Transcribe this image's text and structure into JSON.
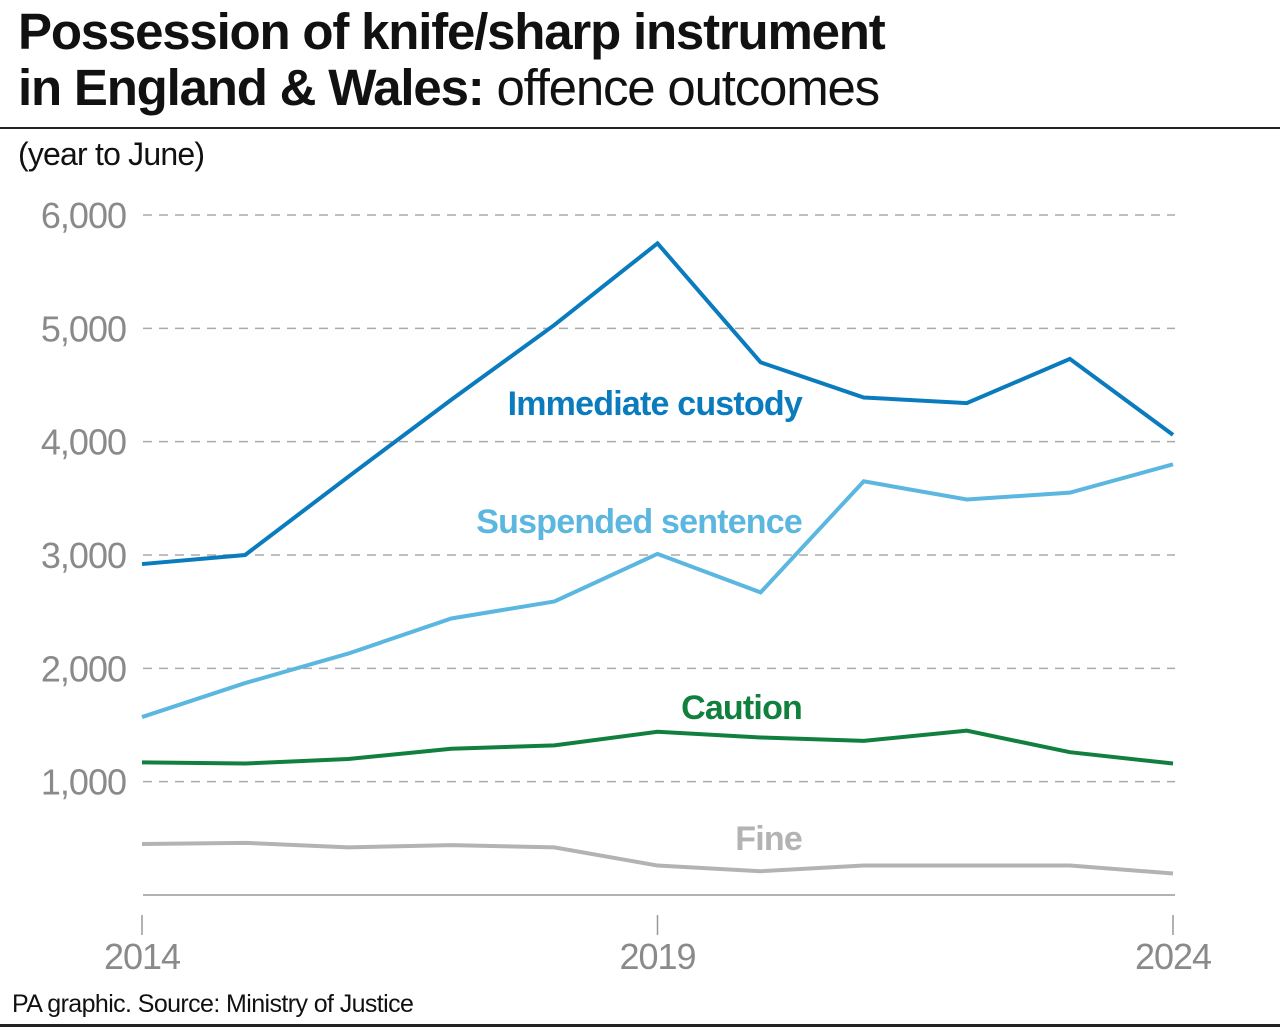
{
  "title": {
    "bold_line1": "Possession of knife/sharp instrument",
    "bold_line2": "in England & Wales:",
    "light": " offence outcomes"
  },
  "subtitle": "(year to June)",
  "footer": "PA graphic. Source: Ministry of Justice",
  "chart_data": {
    "type": "line",
    "x": [
      2014,
      2015,
      2016,
      2017,
      2018,
      2019,
      2020,
      2021,
      2022,
      2023,
      2024
    ],
    "x_tick_labels": [
      "2014",
      "2019",
      "2024"
    ],
    "y_tick_labels": [
      "1,000",
      "2,000",
      "3,000",
      "4,000",
      "5,000",
      "6,000"
    ],
    "ylim": [
      0,
      6000
    ],
    "grid": "horizontal dashed",
    "series": [
      {
        "name": "Immediate custody",
        "color": "#0a7bbd",
        "values": [
          2920,
          3000,
          3690,
          4370,
          5030,
          5750,
          4700,
          4390,
          4340,
          4730,
          4060
        ]
      },
      {
        "name": "Suspended sentence",
        "color": "#5bb7e0",
        "values": [
          1570,
          1870,
          2130,
          2440,
          2590,
          3010,
          2670,
          3650,
          3490,
          3550,
          3800
        ]
      },
      {
        "name": "Caution",
        "color": "#11803e",
        "values": [
          1170,
          1160,
          1200,
          1290,
          1320,
          1440,
          1390,
          1360,
          1450,
          1260,
          1160
        ]
      },
      {
        "name": "Fine",
        "color": "#b3b3b3",
        "values": [
          450,
          460,
          420,
          440,
          420,
          260,
          210,
          260,
          260,
          260,
          190
        ]
      }
    ]
  }
}
